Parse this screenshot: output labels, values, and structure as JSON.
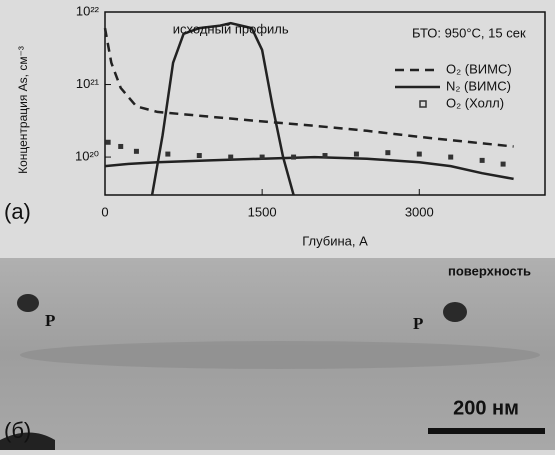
{
  "chart_data": {
    "type": "line",
    "log_y": true,
    "legend": "upper right",
    "ylabel": "Концентрация As, см⁻³",
    "xlabel": "Глубина, А",
    "annotation": "БТО: 950°С, 15 сек",
    "xlim": [
      0,
      4200
    ],
    "xticks": [
      0,
      1500,
      3000
    ],
    "ylim": [
      3e+19,
      1e+22
    ],
    "yticks": [
      {
        "value": 1e+20,
        "label": "10²⁰"
      },
      {
        "value": 1e+21,
        "label": "10²¹"
      },
      {
        "value": 1e+22,
        "label": "10²²"
      }
    ],
    "series": [
      {
        "name": "O₂ (ВИМС)",
        "style": "dashed",
        "color": "#222",
        "x": [
          0,
          60,
          150,
          300,
          500,
          1000,
          1500,
          2000,
          2500,
          3000,
          3500,
          3900
        ],
        "values": [
          6e+21,
          2e+21,
          9e+20,
          5e+20,
          4.2e+20,
          3.6e+20,
          3.1e+20,
          2.7e+20,
          2.3e+20,
          1.9e+20,
          1.6e+20,
          1.4e+20
        ]
      },
      {
        "name": "N₂ (ВИМС)",
        "style": "solid",
        "color": "#222",
        "x": [
          0,
          200,
          500,
          1000,
          1500,
          2000,
          2500,
          3000,
          3300,
          3600,
          3900
        ],
        "values": [
          7.5e+19,
          8e+19,
          8.5e+19,
          9e+19,
          9.5e+19,
          1e+20,
          9.5e+19,
          8.5e+19,
          7.5e+19,
          6e+19,
          5e+19
        ]
      },
      {
        "name": "O₂ (Холл)",
        "style": "markers",
        "color": "#333",
        "x": [
          30,
          150,
          300,
          600,
          900,
          1200,
          1500,
          1800,
          2100,
          2400,
          2700,
          3000,
          3300,
          3600,
          3800
        ],
        "values": [
          1.6e+20,
          1.4e+20,
          1.2e+20,
          1.1e+20,
          1.05e+20,
          1e+20,
          1e+20,
          1e+20,
          1.05e+20,
          1.1e+20,
          1.15e+20,
          1.1e+20,
          1e+20,
          9e+19,
          8e+19
        ]
      },
      {
        "name": "исходный профиль",
        "style": "solid",
        "color": "#222",
        "in_legend": false,
        "x": [
          450,
          550,
          650,
          750,
          900,
          1100,
          1200,
          1300,
          1400,
          1500,
          1600,
          1700,
          1800
        ],
        "values": [
          3e+19,
          2e+20,
          2e+21,
          5e+21,
          6e+21,
          6.5e+21,
          7e+21,
          6.5e+21,
          6e+21,
          3e+21,
          5e+20,
          1e+20,
          3e+19
        ]
      }
    ]
  },
  "figure": {
    "panel_a": "(а)",
    "panel_b": "(б)",
    "surface": "поверхность",
    "marker_left": "P",
    "marker_right": "P",
    "scale_bar": "200 нм"
  }
}
